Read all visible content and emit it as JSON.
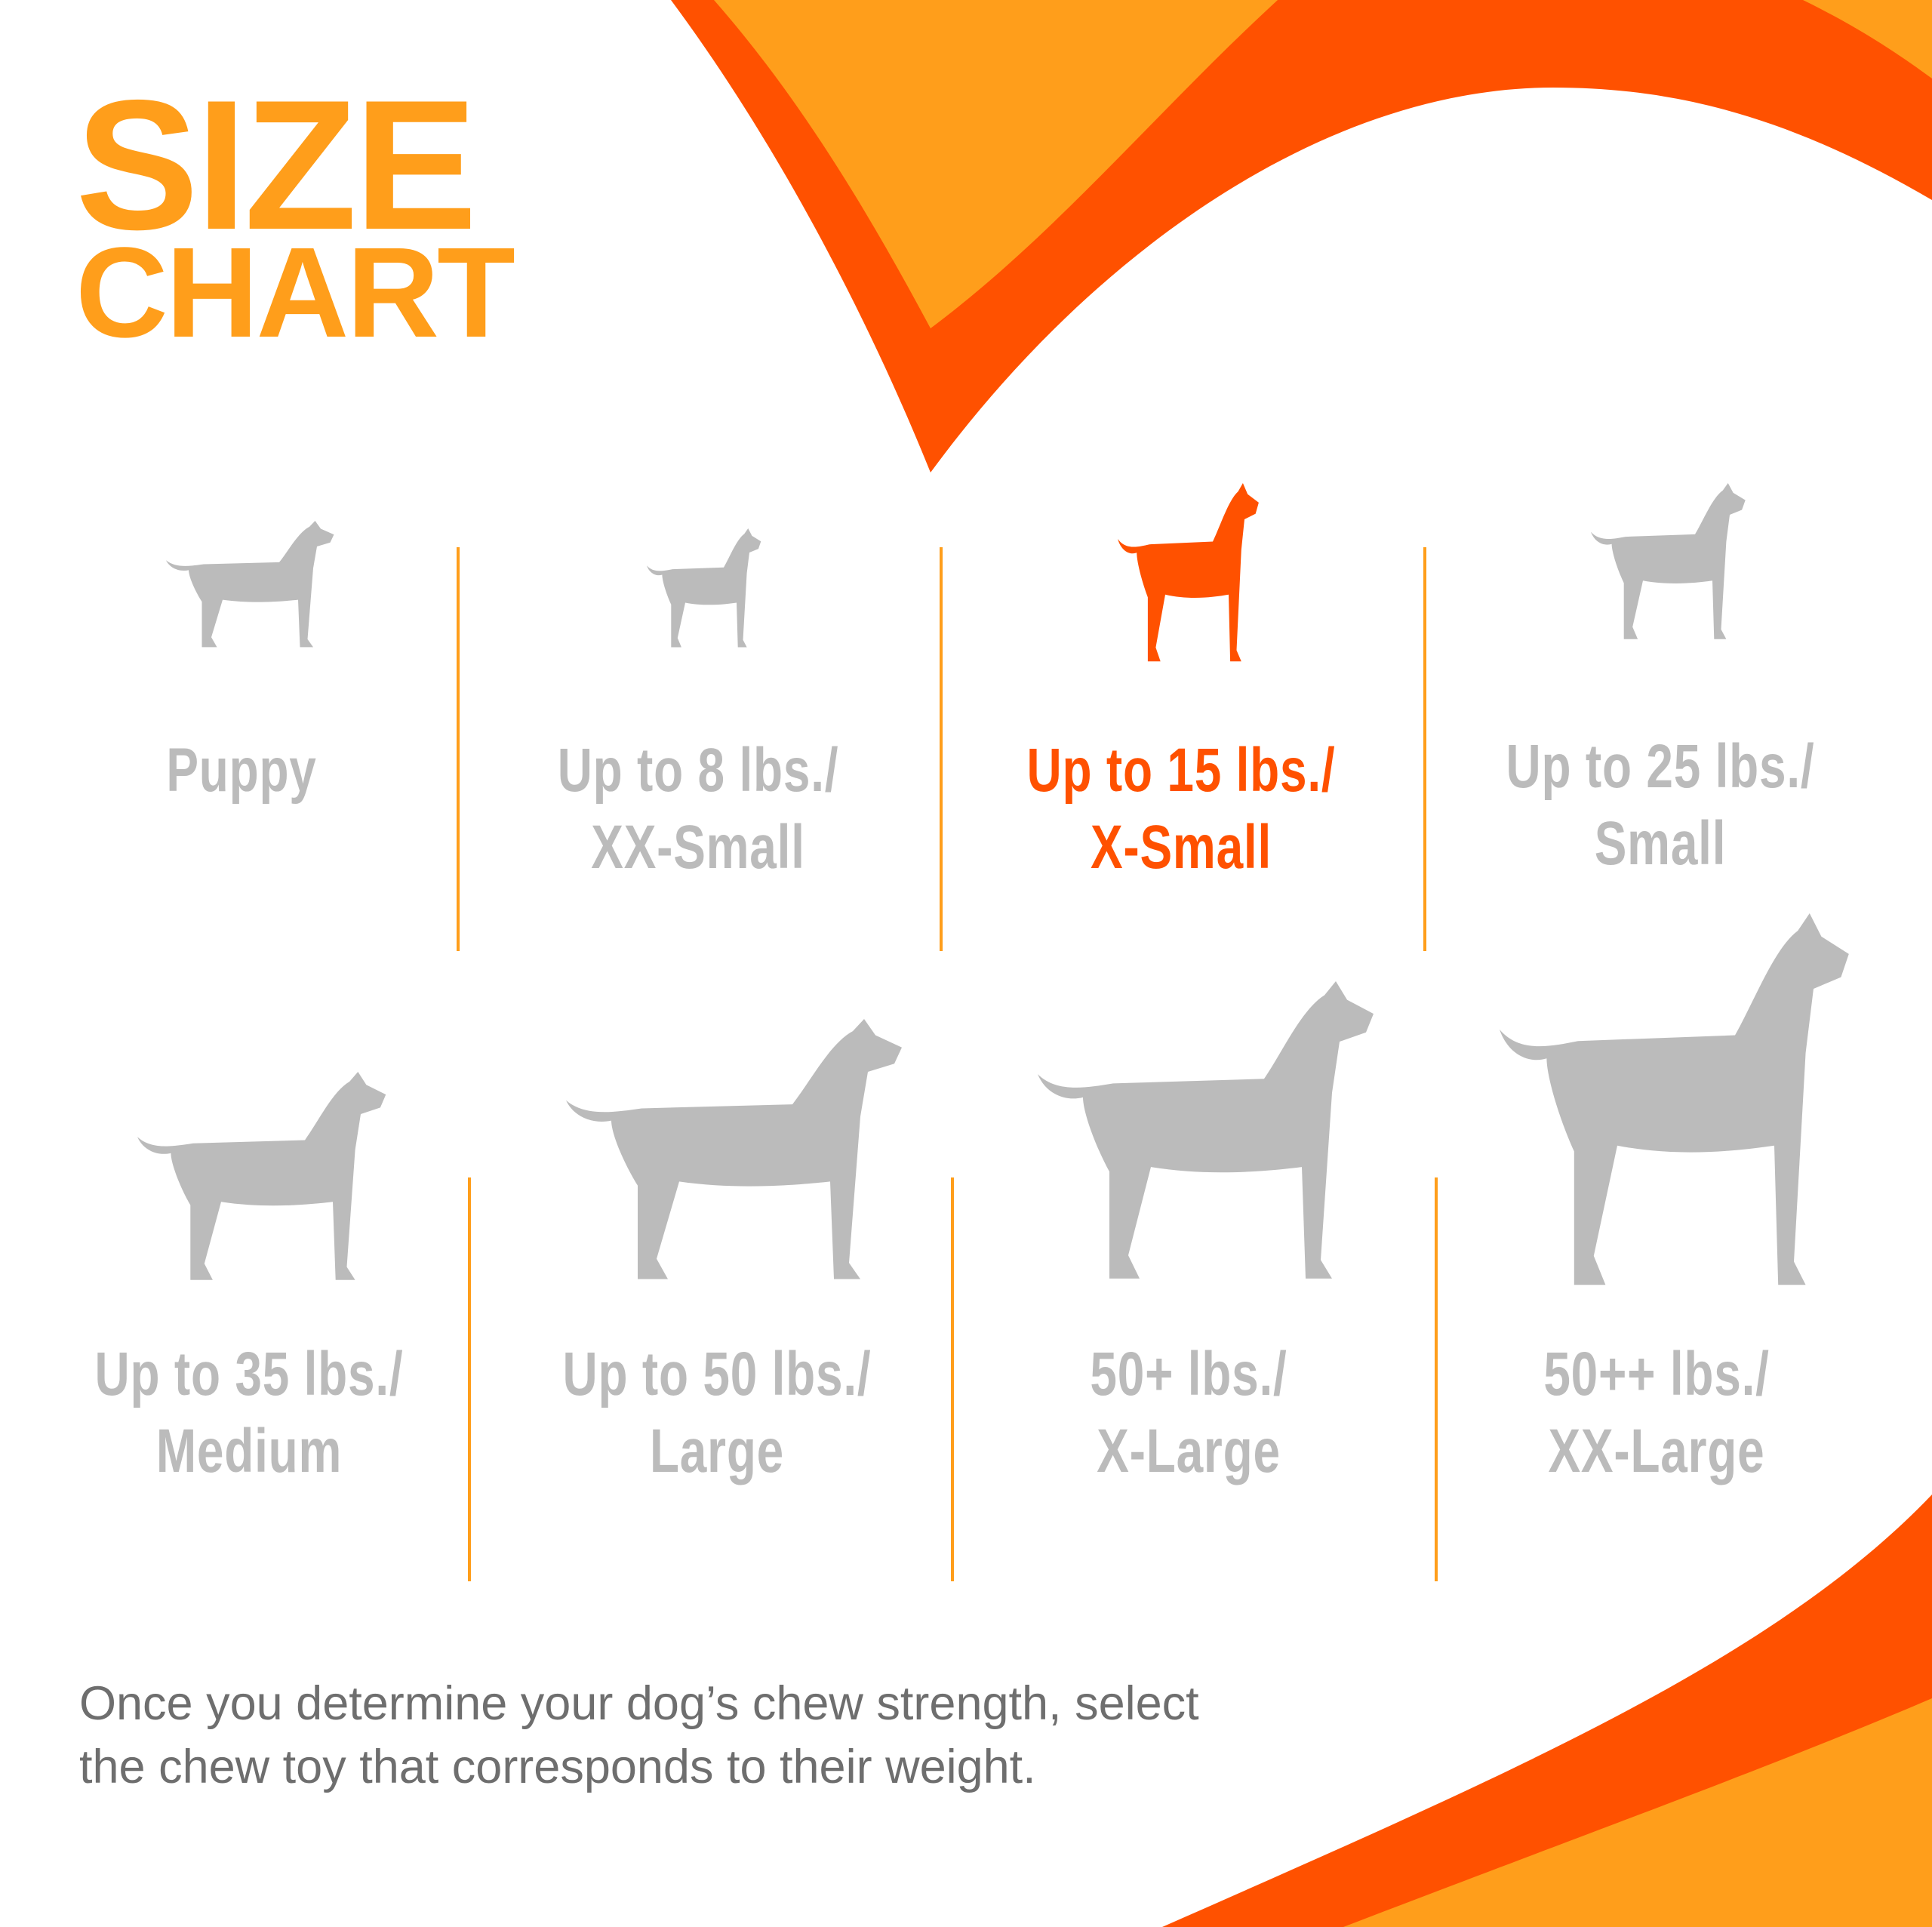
{
  "title": {
    "line1": "SIZE",
    "line2": "CHART"
  },
  "colors": {
    "orange": "#FF9E1B",
    "red_orange": "#FF5100",
    "gray": "#BBBBBB",
    "text": "#6E6E6E"
  },
  "sizes": [
    {
      "line1": "Puppy",
      "line2": "",
      "icon": "puppy-icon",
      "active": false
    },
    {
      "line1": "Up to 8 lbs./",
      "line2": "XX-Small",
      "icon": "chihuahua-icon",
      "active": false
    },
    {
      "line1": "Up to 15 lbs./",
      "line2": "X-Small",
      "icon": "pinscher-icon",
      "active": true
    },
    {
      "line1": "Up to 25 lbs./",
      "line2": "Small",
      "icon": "terrier-icon",
      "active": false
    },
    {
      "line1": "Up to 35 lbs./",
      "line2": "Medium",
      "icon": "beagle-icon",
      "active": false
    },
    {
      "line1": "Up to 50 lbs./",
      "line2": "Large",
      "icon": "labrador-icon",
      "active": false
    },
    {
      "line1": "50+ lbs./",
      "line2": "X-Large",
      "icon": "shepherd-icon",
      "active": false
    },
    {
      "line1": "50++ lbs./",
      "line2": "XX-Large",
      "icon": "great-dane-icon",
      "active": false
    }
  ],
  "note": {
    "line1": "Once you determine your dog’s chew strength, select",
    "line2": "the chew toy that corresponds to their weight."
  }
}
